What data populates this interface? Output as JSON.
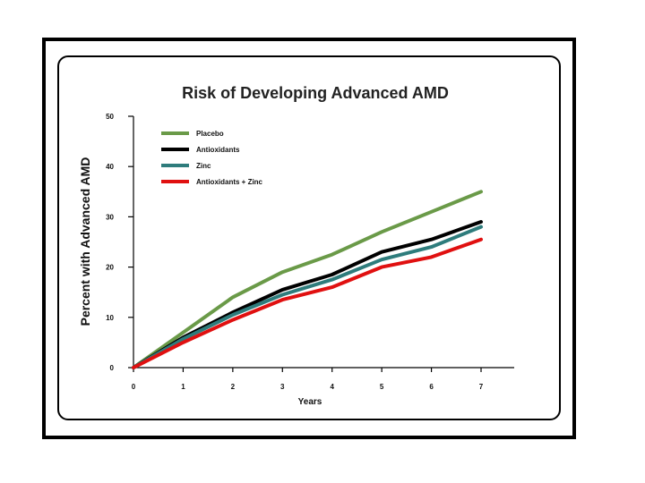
{
  "chart_data": {
    "type": "line",
    "title": "Risk of Developing Advanced AMD",
    "xlabel": "Years",
    "ylabel": "Percent with Advanced AMD",
    "x": [
      0,
      1,
      2,
      3,
      4,
      5,
      6,
      7
    ],
    "xlim": [
      0,
      7.5
    ],
    "ylim": [
      0,
      50
    ],
    "xticks": [
      "0",
      "1",
      "2",
      "3",
      "4",
      "5",
      "6",
      "7"
    ],
    "yticks": [
      "0",
      "10",
      "20",
      "30",
      "40",
      "50"
    ],
    "legend_position": "top-left",
    "series": [
      {
        "name": "Placebo",
        "color": "#6a9a48",
        "values": [
          0,
          7,
          14,
          19,
          22.5,
          27,
          31,
          35
        ]
      },
      {
        "name": "Antioxidants",
        "color": "#000000",
        "values": [
          0,
          6,
          11,
          15.5,
          18.5,
          23,
          25.5,
          29
        ]
      },
      {
        "name": "Zinc",
        "color": "#2e7c7c",
        "values": [
          0,
          5.7,
          10.5,
          14.5,
          17.5,
          21.5,
          24,
          28
        ]
      },
      {
        "name": "Antioxidants + Zinc",
        "color": "#e01010",
        "values": [
          0,
          5,
          9.5,
          13.5,
          16,
          20,
          22,
          25.5
        ]
      }
    ]
  }
}
